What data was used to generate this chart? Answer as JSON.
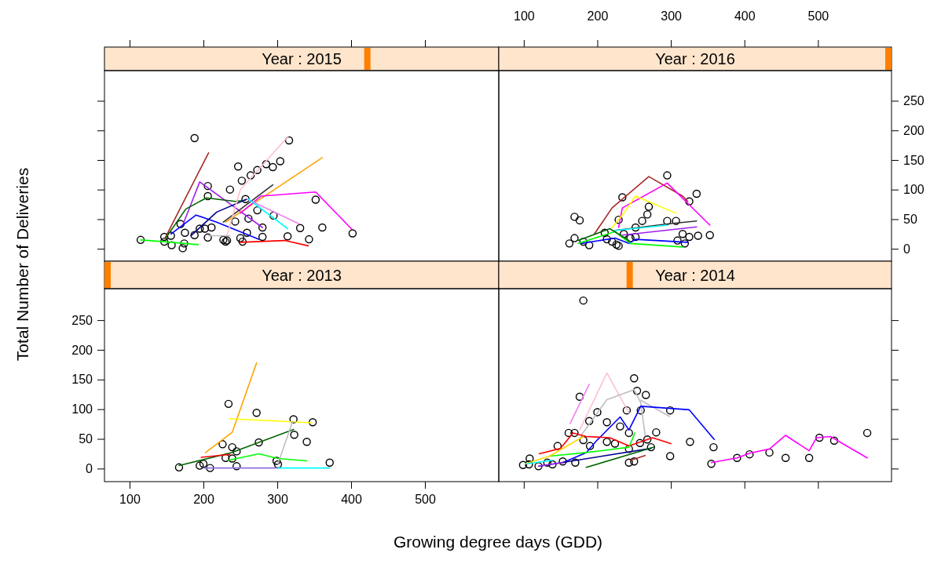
{
  "chart_data": [
    {
      "type": "line",
      "title": "Year : 2015",
      "xlim": [
        66,
        600
      ],
      "ylim": [
        -21,
        301
      ],
      "xticks": [
        100,
        200,
        300,
        400,
        500
      ],
      "yticks": [
        0,
        50,
        100,
        150,
        200,
        250
      ],
      "tick_labels": false,
      "series": [
        {
          "type": "scatter",
          "marker": "circle",
          "color": "#000000",
          "x": [
            115,
            147,
            147,
            157,
            156,
            169,
            172,
            174,
            175,
            188,
            188,
            195,
            202,
            206,
            206,
            206,
            211,
            227,
            230,
            232,
            236,
            243,
            247,
            250,
            252,
            253,
            257,
            259,
            261,
            264,
            273,
            273,
            280,
            280,
            285,
            294,
            295,
            304,
            314,
            316,
            331,
            343,
            352,
            361,
            402
          ],
          "values": [
            15,
            20,
            12,
            6,
            22,
            42,
            1,
            9,
            27,
            187,
            23,
            34,
            34,
            19,
            106,
            89,
            36,
            15,
            12,
            14,
            100,
            46,
            139,
            18,
            115,
            12,
            84,
            27,
            51,
            124,
            133,
            65,
            36,
            20,
            143,
            138,
            56,
            148,
            21,
            183,
            35,
            16,
            83,
            36,
            26
          ]
        },
        {
          "color": "#00ff00",
          "x": [
            115,
            147,
            193
          ],
          "values": [
            15,
            12,
            7
          ]
        },
        {
          "color": "#a52a2a",
          "x": [
            148,
            207
          ],
          "values": [
            18,
            162
          ]
        },
        {
          "color": "#a020f0",
          "x": [
            172,
            195,
            280
          ],
          "values": [
            40,
            113,
            36
          ]
        },
        {
          "color": "#006400",
          "x": [
            149,
            176,
            204,
            243,
            257
          ],
          "values": [
            18,
            67,
            86,
            80,
            82
          ]
        },
        {
          "color": "#0000ff",
          "x": [
            156,
            190,
            218,
            275
          ],
          "values": [
            25,
            57,
            45,
            16
          ]
        },
        {
          "color": "#00008b",
          "x": [
            183,
            218,
            259
          ],
          "values": [
            22,
            62,
            84
          ]
        },
        {
          "color": "#333333",
          "x": [
            227,
            294
          ],
          "values": [
            45,
            108
          ]
        },
        {
          "color": "#ffa500",
          "x": [
            230,
            361
          ],
          "values": [
            45,
            154
          ]
        },
        {
          "color": "#ffc0cb",
          "x": [
            232,
            250,
            315
          ],
          "values": [
            23,
            100,
            190
          ]
        },
        {
          "color": "#ff00ff",
          "x": [
            250,
            278,
            352,
            401
          ],
          "values": [
            60,
            89,
            96,
            33
          ]
        },
        {
          "color": "#ee82ee",
          "x": [
            259,
            330
          ],
          "values": [
            84,
            42
          ]
        },
        {
          "color": "#00ffff",
          "x": [
            261,
            314
          ],
          "values": [
            84,
            34
          ]
        },
        {
          "color": "#ff0000",
          "x": [
            250,
            310,
            342
          ],
          "values": [
            11,
            14,
            5
          ]
        },
        {
          "color": "#bebebe",
          "x": [
            207,
            236
          ],
          "values": [
            22,
            22
          ]
        }
      ]
    },
    {
      "type": "line",
      "title": "Year : 2016",
      "xlim": [
        66,
        600
      ],
      "ylim": [
        -21,
        301
      ],
      "xticks": [
        100,
        200,
        300,
        400,
        500
      ],
      "yticks": [
        0,
        50,
        100,
        150,
        200,
        250
      ],
      "series": [
        {
          "type": "scatter",
          "marker": "circle",
          "color": "#000000",
          "x": [
            162,
            169,
            169,
            176,
            181,
            189,
            210,
            213,
            220,
            226,
            229,
            229,
            234,
            236,
            245,
            252,
            252,
            261,
            268,
            270,
            295,
            295,
            307,
            309,
            316,
            319,
            325,
            325,
            335,
            337,
            353
          ],
          "values": [
            9,
            54,
            18,
            48,
            12,
            6,
            27,
            16,
            12,
            7,
            49,
            5,
            87,
            25,
            18,
            36,
            20,
            47,
            58,
            71,
            124,
            47,
            47,
            14,
            25,
            9,
            80,
            20,
            93,
            22,
            23
          ]
        },
        {
          "color": "#a52a2a",
          "x": [
            196,
            220,
            270,
            316,
            323
          ],
          "values": [
            25,
            69,
            122,
            89,
            80
          ]
        },
        {
          "color": "#ff00ff",
          "x": [
            229,
            234,
            295,
            353
          ],
          "values": [
            36,
            69,
            111,
            40
          ]
        },
        {
          "color": "#ffff00",
          "x": [
            220,
            236,
            252,
            307
          ],
          "values": [
            36,
            60,
            89,
            60
          ]
        },
        {
          "color": "#333333",
          "x": [
            224,
            295,
            335
          ],
          "values": [
            31,
            42,
            47
          ]
        },
        {
          "color": "#00ffff",
          "x": [
            224,
            295
          ],
          "values": [
            31,
            40
          ]
        },
        {
          "color": "#a020f0",
          "x": [
            234,
            335
          ],
          "values": [
            23,
            37
          ]
        },
        {
          "color": "#0000ff",
          "x": [
            178,
            224,
            243,
            252,
            323
          ],
          "values": [
            9,
            18,
            9,
            16,
            11
          ]
        },
        {
          "color": "#00ff00",
          "x": [
            174,
            224,
            245,
            316
          ],
          "values": [
            9,
            29,
            9,
            3
          ]
        },
        {
          "color": "#006400",
          "x": [
            174,
            217,
            243
          ],
          "values": [
            14,
            34,
            14
          ]
        }
      ]
    },
    {
      "type": "line",
      "title": "Year : 2013",
      "xlabel": "Growing degree days (GDD)",
      "ylabel": "Total Number of Deliveries",
      "xlim": [
        66,
        600
      ],
      "ylim": [
        -22,
        303
      ],
      "xticks": [
        100,
        200,
        300,
        400,
        500
      ],
      "yticks": [
        0,
        50,
        100,
        150,
        200,
        250
      ],
      "series": [
        {
          "type": "scatter",
          "marker": "circle",
          "color": "#000000",
          "x": [
            167,
            195,
            200,
            209,
            226,
            230,
            234,
            239,
            239,
            245,
            245,
            272,
            275,
            299,
            301,
            322,
            323,
            340,
            348,
            371
          ],
          "values": [
            2,
            5,
            8,
            1,
            41,
            18,
            109,
            36,
            17,
            29,
            4,
            94,
            44,
            13,
            7,
            83,
            57,
            45,
            78,
            10
          ]
        },
        {
          "color": "#ffa500",
          "x": [
            203,
            239,
            272
          ],
          "values": [
            27,
            61,
            178
          ]
        },
        {
          "color": "#ffff00",
          "x": [
            235,
            347
          ],
          "values": [
            84,
            77
          ]
        },
        {
          "color": "#006400",
          "x": [
            167,
            238,
            322
          ],
          "values": [
            5,
            27,
            66
          ]
        },
        {
          "color": "#00ff00",
          "x": [
            234,
            275,
            301,
            340
          ],
          "values": [
            14,
            25,
            17,
            13
          ]
        },
        {
          "color": "#ff0000",
          "x": [
            197,
            236
          ],
          "values": [
            19,
            24
          ]
        },
        {
          "color": "#bebebe",
          "x": [
            301,
            321
          ],
          "values": [
            8,
            80
          ]
        },
        {
          "color": "#9370db",
          "x": [
            200,
            301
          ],
          "values": [
            1,
            1
          ]
        },
        {
          "color": "#00ffff",
          "x": [
            301,
            371
          ],
          "values": [
            1,
            1
          ]
        }
      ]
    },
    {
      "type": "line",
      "title": "Year : 2014",
      "xlim": [
        66,
        600
      ],
      "ylim": [
        -22,
        303
      ],
      "xticks": [
        100,
        200,
        300,
        400,
        500
      ],
      "yticks": [
        0,
        50,
        100,
        150,
        200,
        250
      ],
      "tick_labels": false,
      "series": [
        {
          "type": "scatter",
          "marker": "circle",
          "color": "#000000",
          "x": [
            181,
            99,
            108,
            107,
            120,
            132,
            139,
            146,
            153,
            161,
            169,
            170,
            176,
            181,
            189,
            190,
            200,
            213,
            213,
            224,
            231,
            240,
            243,
            243,
            243,
            250,
            250,
            254,
            258,
            259,
            266,
            268,
            273,
            280,
            299,
            299,
            326,
            355,
            358,
            390,
            407,
            434,
            456,
            488,
            502,
            522,
            567
          ],
          "values": [
            283,
            6,
            17,
            7,
            4,
            10,
            7,
            38,
            12,
            60,
            60,
            10,
            121,
            48,
            80,
            38,
            95,
            78,
            45,
            42,
            71,
            98,
            60,
            33,
            10,
            12,
            152,
            131,
            43,
            98,
            124,
            49,
            36,
            61,
            98,
            21,
            45,
            8,
            36,
            18,
            24,
            27,
            18,
            18,
            52,
            47,
            60
          ]
        },
        {
          "color": "#ff00ff",
          "x": [
            355,
            390,
            407,
            434,
            456,
            488,
            498,
            517,
            567
          ],
          "values": [
            10,
            18,
            26,
            33,
            56,
            30,
            52,
            54,
            18
          ]
        },
        {
          "color": "#ee82ee",
          "x": [
            163,
            189
          ],
          "values": [
            76,
            142
          ]
        },
        {
          "color": "#ffc0cb",
          "x": [
            176,
            213,
            243
          ],
          "values": [
            65,
            161,
            94
          ]
        },
        {
          "color": "#bebebe",
          "x": [
            178,
            213,
            250,
            259,
            265
          ],
          "values": [
            56,
            116,
            133,
            111,
            56
          ]
        },
        {
          "color": "#bebebe",
          "x": [
            259,
            298
          ],
          "values": [
            115,
            88
          ]
        },
        {
          "color": "#0000ff",
          "x": [
            153,
            185,
            199,
            231,
            243,
            259,
            325,
            359
          ],
          "values": [
            10,
            27,
            47,
            87,
            65,
            105,
            99,
            49
          ]
        },
        {
          "color": "#ff0000",
          "x": [
            121,
            150,
            167,
            185,
            217,
            243,
            275,
            300
          ],
          "values": [
            25,
            34,
            60,
            54,
            52,
            38,
            52,
            42
          ]
        },
        {
          "color": "#00ff00",
          "x": [
            135,
            185,
            243,
            251
          ],
          "values": [
            21,
            27,
            36,
            60
          ]
        },
        {
          "color": "#ffd700",
          "x": [
            102,
            135,
            181
          ],
          "values": [
            8,
            21,
            54
          ]
        },
        {
          "color": "#00ffff",
          "x": [
            104,
            139
          ],
          "values": [
            8,
            14
          ]
        },
        {
          "color": "#00008b",
          "x": [
            121,
            273
          ],
          "values": [
            4,
            34
          ]
        },
        {
          "color": "#006400",
          "x": [
            185,
            277
          ],
          "values": [
            2,
            36
          ]
        },
        {
          "color": "#a52a2a",
          "x": [
            245,
            265
          ],
          "values": [
            14,
            22
          ]
        },
        {
          "color": "#a020f0",
          "x": [
            120,
            153
          ],
          "values": [
            4,
            10
          ]
        }
      ]
    }
  ]
}
